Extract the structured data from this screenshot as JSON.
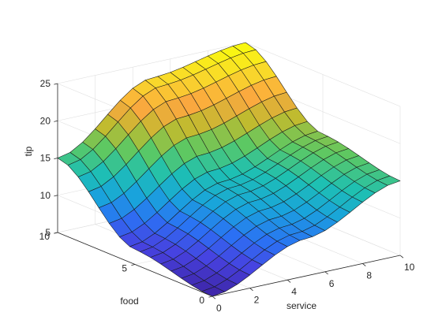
{
  "chart_data": {
    "type": "surface",
    "title": "",
    "xlabel": "service",
    "ylabel": "food",
    "zlabel": "tip",
    "xlim": [
      0,
      10
    ],
    "ylim": [
      0,
      10
    ],
    "zlim": [
      5,
      25
    ],
    "x_ticks": [
      "0",
      "2",
      "4",
      "6",
      "8",
      "10"
    ],
    "y_ticks": [
      "0",
      "5",
      "10"
    ],
    "z_ticks": [
      "5",
      "10",
      "15",
      "20",
      "25"
    ],
    "grid": true,
    "colormap": "parula",
    "grid_resolution": 15,
    "samples": [
      {
        "service": 0,
        "food": 0,
        "tip": 5
      },
      {
        "service": 0,
        "food": 5,
        "tip": 7
      },
      {
        "service": 0,
        "food": 10,
        "tip": 15
      },
      {
        "service": 5,
        "food": 0,
        "tip": 10
      },
      {
        "service": 5,
        "food": 5,
        "tip": 13
      },
      {
        "service": 5,
        "food": 10,
        "tip": 23
      },
      {
        "service": 10,
        "food": 0,
        "tip": 15
      },
      {
        "service": 10,
        "food": 5,
        "tip": 17
      },
      {
        "service": 10,
        "food": 10,
        "tip": 25
      }
    ]
  },
  "colors": {
    "colormap_stops": [
      "#3e26a8",
      "#4742e0",
      "#2b71f4",
      "#19a4db",
      "#1ec0b2",
      "#5cc863",
      "#bfbb2f",
      "#fba83f",
      "#f9d92a",
      "#f9fb0e"
    ],
    "edge": "#1a1a1a",
    "axis": "#262626",
    "grid": "#dfdfdf"
  }
}
